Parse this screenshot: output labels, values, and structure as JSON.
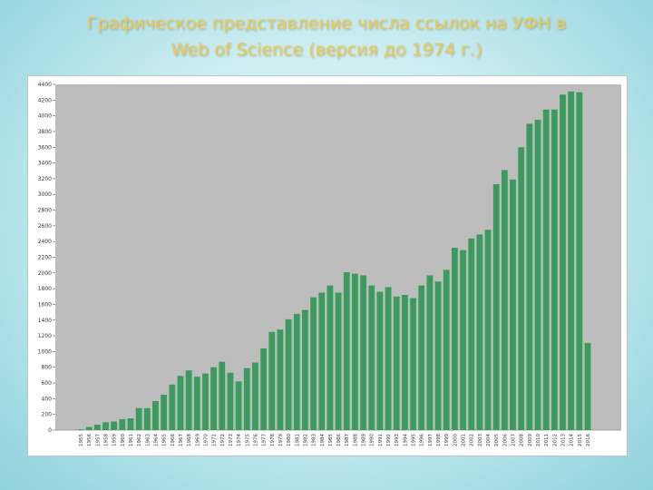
{
  "slide": {
    "title_line1": "Графическое представление числа ссылок на УФН в",
    "title_line2": "Web of Science (версия до 1974 г.)"
  },
  "colors": {
    "bar": "#3a9b5c",
    "plot_bg": "#bdbdbd",
    "title": "#f2c94c"
  },
  "chart_data": {
    "type": "bar",
    "title": "",
    "xlabel": "",
    "ylabel": "",
    "ylim": [
      0,
      4400
    ],
    "yticks": [
      0,
      200,
      400,
      600,
      800,
      1000,
      1200,
      1400,
      1600,
      1800,
      2000,
      2200,
      2400,
      2600,
      2800,
      3000,
      3200,
      3400,
      3600,
      3800,
      4000,
      4200,
      4400
    ],
    "grid": false,
    "categories": [
      "1955",
      "1956",
      "1957",
      "1958",
      "1959",
      "1960",
      "1961",
      "1962",
      "1963",
      "1964",
      "1965",
      "1966",
      "1967",
      "1968",
      "1969",
      "1970",
      "1971",
      "1972",
      "1973",
      "1974",
      "1975",
      "1976",
      "1977",
      "1978",
      "1979",
      "1980",
      "1981",
      "1982",
      "1983",
      "1984",
      "1985",
      "1986",
      "1987",
      "1988",
      "1989",
      "1990",
      "1991",
      "1992",
      "1993",
      "1994",
      "1995",
      "1996",
      "1997",
      "1998",
      "1999",
      "2000",
      "2001",
      "2002",
      "2003",
      "2004",
      "2005",
      "2006",
      "2007",
      "2008",
      "2009",
      "2010",
      "2011",
      "2012",
      "2013",
      "2014",
      "2015",
      "2016"
    ],
    "values": [
      10,
      40,
      70,
      100,
      110,
      140,
      150,
      280,
      280,
      370,
      450,
      580,
      690,
      760,
      680,
      720,
      800,
      870,
      730,
      620,
      790,
      860,
      1040,
      1250,
      1280,
      1410,
      1480,
      1530,
      1690,
      1750,
      1840,
      1750,
      2010,
      1990,
      1970,
      1840,
      1760,
      1820,
      1700,
      1720,
      1680,
      1840,
      1970,
      1890,
      2040,
      2320,
      2290,
      2440,
      2490,
      2550,
      3130,
      3310,
      3190,
      3600,
      3900,
      3950,
      4080,
      4080,
      4270,
      4310,
      4300,
      1110
    ]
  }
}
